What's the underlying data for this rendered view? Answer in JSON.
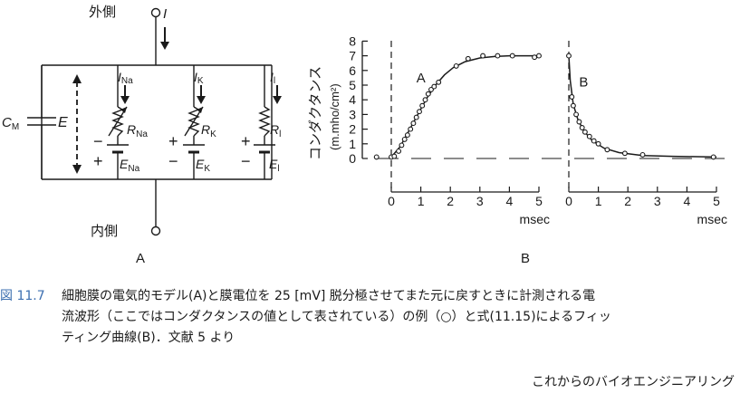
{
  "panel_a": {
    "outside_label": "外側",
    "inside_label": "内側",
    "current_total": "I",
    "cap_label": {
      "main": "C",
      "sub": "M"
    },
    "voltage_label": "E",
    "branches": [
      {
        "current": {
          "main": "I",
          "sub": "Na"
        },
        "resistor": {
          "main": "R",
          "sub": "Na"
        },
        "battery": {
          "main": "E",
          "sub": "Na"
        },
        "signs": [
          "−",
          "+"
        ]
      },
      {
        "current": {
          "main": "I",
          "sub": "K"
        },
        "resistor": {
          "main": "R",
          "sub": "K"
        },
        "battery": {
          "main": "E",
          "sub": "K"
        },
        "signs": [
          "+",
          "−"
        ]
      },
      {
        "current": {
          "main": "I",
          "sub": "l"
        },
        "resistor": {
          "main": "R",
          "sub": "l"
        },
        "battery": {
          "main": "E",
          "sub": "l"
        },
        "signs": [
          "+",
          "−"
        ]
      }
    ],
    "panel_label": "A"
  },
  "chart_data": {
    "type": "scatter",
    "panel_label": "B",
    "ylabel_main": "コンダクタンス",
    "ylabel_unit": "(m.mho/cm²)",
    "yticks": [
      "0",
      "1",
      "2",
      "3",
      "4",
      "5",
      "6",
      "7",
      "8"
    ],
    "ylim": [
      0,
      8
    ],
    "xlabel": "msec",
    "xticks": [
      "0",
      "1",
      "2",
      "3",
      "4",
      "5"
    ],
    "xlim": [
      0,
      5
    ],
    "grid": false,
    "segments": [
      {
        "name": "A",
        "points": [
          [
            -0.5,
            0.1
          ],
          [
            0,
            0.1
          ],
          [
            0.1,
            0.15
          ],
          [
            0.25,
            0.5
          ],
          [
            0.35,
            0.9
          ],
          [
            0.45,
            1.3
          ],
          [
            0.55,
            1.6
          ],
          [
            0.65,
            2.0
          ],
          [
            0.75,
            2.4
          ],
          [
            0.85,
            2.8
          ],
          [
            0.95,
            3.2
          ],
          [
            1.05,
            3.6
          ],
          [
            1.15,
            4.0
          ],
          [
            1.25,
            4.4
          ],
          [
            1.35,
            4.7
          ],
          [
            1.45,
            4.9
          ],
          [
            1.6,
            5.2
          ],
          [
            2.2,
            6.3
          ],
          [
            2.6,
            6.8
          ],
          [
            3.1,
            7.0
          ],
          [
            3.6,
            7.0
          ],
          [
            4.1,
            7.0
          ],
          [
            4.85,
            6.9
          ],
          [
            5.0,
            7.0
          ]
        ],
        "curve": [
          [
            0,
            0.1
          ],
          [
            0.3,
            0.8
          ],
          [
            0.6,
            1.9
          ],
          [
            0.9,
            3.0
          ],
          [
            1.2,
            4.1
          ],
          [
            1.5,
            5.0
          ],
          [
            1.8,
            5.7
          ],
          [
            2.1,
            6.2
          ],
          [
            2.5,
            6.6
          ],
          [
            3.0,
            6.85
          ],
          [
            3.5,
            6.95
          ],
          [
            4.0,
            7.0
          ],
          [
            5.0,
            7.0
          ]
        ]
      },
      {
        "name": "B",
        "points": [
          [
            0,
            7.0
          ],
          [
            0.1,
            4.2
          ],
          [
            0.15,
            3.6
          ],
          [
            0.25,
            3.0
          ],
          [
            0.35,
            2.5
          ],
          [
            0.45,
            2.1
          ],
          [
            0.55,
            1.8
          ],
          [
            0.7,
            1.5
          ],
          [
            0.85,
            1.2
          ],
          [
            1.0,
            1.0
          ],
          [
            1.3,
            0.6
          ],
          [
            1.9,
            0.35
          ],
          [
            2.5,
            0.25
          ],
          [
            4.9,
            0.1
          ]
        ],
        "curve": [
          [
            0,
            7.0
          ],
          [
            0.05,
            5.3
          ],
          [
            0.15,
            3.7
          ],
          [
            0.3,
            2.7
          ],
          [
            0.5,
            1.9
          ],
          [
            0.8,
            1.2
          ],
          [
            1.2,
            0.7
          ],
          [
            1.7,
            0.4
          ],
          [
            2.5,
            0.2
          ],
          [
            3.5,
            0.15
          ],
          [
            5.0,
            0.1
          ]
        ]
      }
    ]
  },
  "caption": {
    "number": "図 11.7",
    "line1": "細胞膜の電気的モデル(A)と膜電位を 25 [mV] 脱分極させてまた元に戻すときに計測される電",
    "line2": "流波形（ここではコンダクタンスの値として表されている）の例（○）と式(11.15)によるフィッ",
    "line3": "ティング曲線(B)．文献 5 より"
  },
  "footer": "これからのバイオエンジニアリング"
}
